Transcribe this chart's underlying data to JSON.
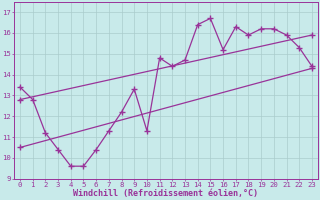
{
  "xlabel": "Windchill (Refroidissement éolien,°C)",
  "bg_color": "#c8eaea",
  "line_color": "#993399",
  "grid_color": "#aacccc",
  "xlim": [
    -0.5,
    23.5
  ],
  "ylim": [
    9.0,
    17.5
  ],
  "xticks": [
    0,
    1,
    2,
    3,
    4,
    5,
    6,
    7,
    8,
    9,
    10,
    11,
    12,
    13,
    14,
    15,
    16,
    17,
    18,
    19,
    20,
    21,
    22,
    23
  ],
  "yticks": [
    9,
    10,
    11,
    12,
    13,
    14,
    15,
    16,
    17
  ],
  "series1_x": [
    0,
    1,
    2,
    3,
    4,
    5,
    6,
    7,
    8,
    9,
    10,
    11,
    12,
    13,
    14,
    15,
    16,
    17,
    18,
    19,
    20,
    21,
    22,
    23
  ],
  "series1_y": [
    13.4,
    12.8,
    11.2,
    10.4,
    9.6,
    9.6,
    10.4,
    11.3,
    12.2,
    13.3,
    11.3,
    14.8,
    14.4,
    14.7,
    16.4,
    16.7,
    15.2,
    16.3,
    15.9,
    16.2,
    16.2,
    15.9,
    15.3,
    14.4
  ],
  "series2_x": [
    0,
    23
  ],
  "series2_y": [
    10.5,
    14.3
  ],
  "series3_x": [
    0,
    23
  ],
  "series3_y": [
    12.8,
    15.9
  ],
  "marker": "+",
  "markersize": 4,
  "linewidth": 0.9,
  "tick_fontsize": 5.2,
  "xlabel_fontsize": 6.0
}
